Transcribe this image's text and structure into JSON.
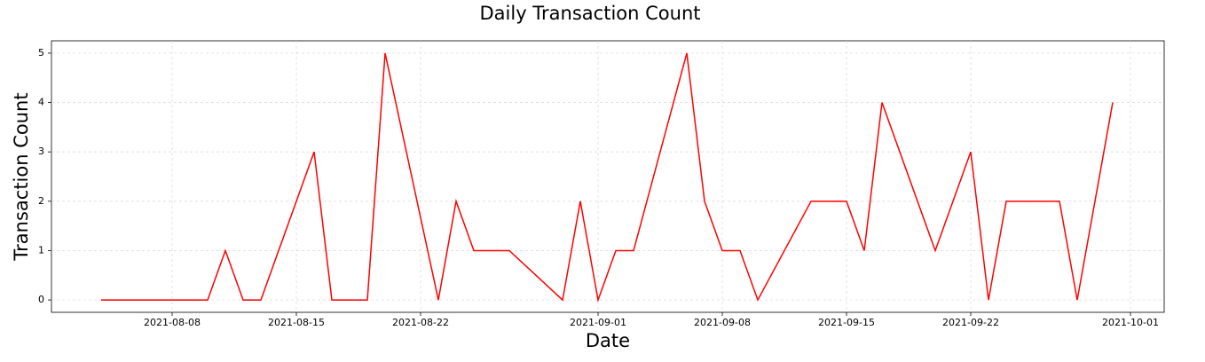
{
  "chart_data": {
    "type": "line",
    "title": "Daily Transaction Count",
    "x_label": "Date",
    "y_label": "Transaction Count",
    "x": [
      "2021-08-04",
      "2021-08-10",
      "2021-08-11",
      "2021-08-12",
      "2021-08-13",
      "2021-08-16",
      "2021-08-17",
      "2021-08-19",
      "2021-08-20",
      "2021-08-23",
      "2021-08-24",
      "2021-08-25",
      "2021-08-27",
      "2021-08-30",
      "2021-08-31",
      "2021-09-01",
      "2021-09-02",
      "2021-09-03",
      "2021-09-06",
      "2021-09-07",
      "2021-09-08",
      "2021-09-09",
      "2021-09-10",
      "2021-09-13",
      "2021-09-15",
      "2021-09-16",
      "2021-09-17",
      "2021-09-20",
      "2021-09-22",
      "2021-09-23",
      "2021-09-24",
      "2021-09-27",
      "2021-09-28",
      "2021-09-30"
    ],
    "series": [
      {
        "name": "Transaction Count",
        "color": "#ff0000",
        "values": [
          0,
          0,
          1,
          0,
          0,
          3,
          0,
          0,
          5,
          0,
          2,
          1,
          1,
          0,
          2,
          0,
          1,
          1,
          5,
          2,
          1,
          1,
          0,
          2,
          2,
          1,
          4,
          1,
          3,
          0,
          2,
          2,
          0,
          4
        ]
      }
    ],
    "xlim": [
      "2021-08-01T04:48",
      "2021-10-02T21:36"
    ],
    "xticks": [
      "2021-08-08",
      "2021-08-15",
      "2021-08-22",
      "2021-09-01",
      "2021-09-08",
      "2021-09-15",
      "2021-09-22",
      "2021-10-01"
    ],
    "ylim": [
      -0.25,
      5.25
    ],
    "yticks": [
      0,
      1,
      2,
      3,
      4,
      5
    ],
    "grid": true
  }
}
